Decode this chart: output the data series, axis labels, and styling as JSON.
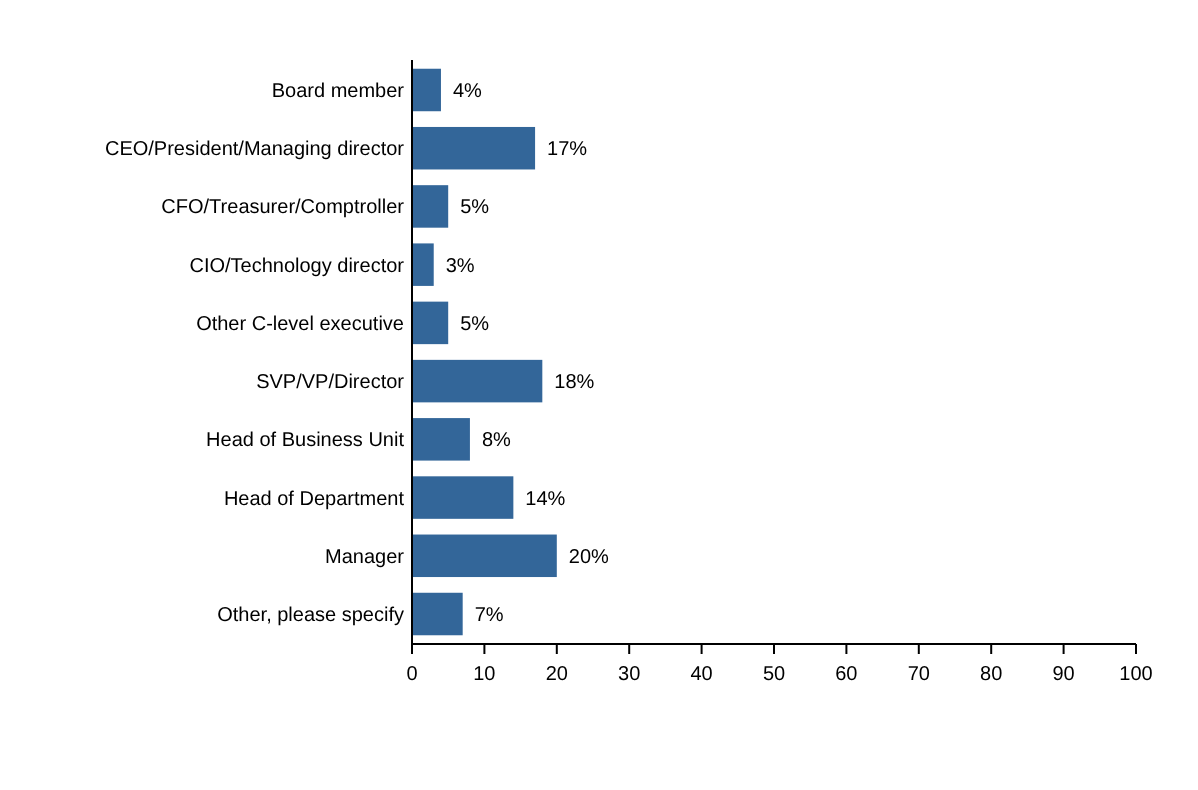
{
  "chart_data": {
    "type": "bar",
    "orientation": "horizontal",
    "categories": [
      "Board member",
      "CEO/President/Managing director",
      "CFO/Treasurer/Comptroller",
      "CIO/Technology director",
      "Other C-level executive",
      "SVP/VP/Director",
      "Head of Business Unit",
      "Head of Department",
      "Manager",
      "Other, please specify"
    ],
    "values": [
      4,
      17,
      5,
      3,
      5,
      18,
      8,
      14,
      20,
      7
    ],
    "value_labels": [
      "4%",
      "17%",
      "5%",
      "3%",
      "5%",
      "18%",
      "8%",
      "14%",
      "20%",
      "7%"
    ],
    "color": "#336699",
    "xlim": [
      0,
      100
    ],
    "xticks": [
      0,
      10,
      20,
      30,
      40,
      50,
      60,
      70,
      80,
      90,
      100
    ],
    "grid": false
  }
}
